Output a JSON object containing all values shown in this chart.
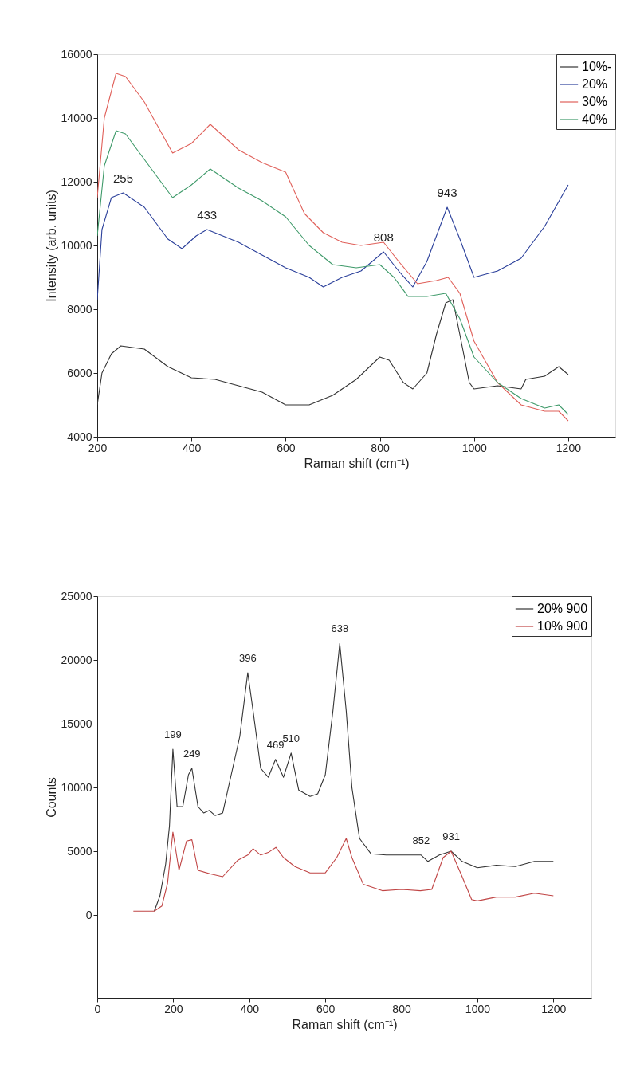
{
  "chart_data": [
    {
      "type": "line",
      "xlabel": "Raman shift (cm⁻¹)",
      "ylabel": "Intensity (arb. units)",
      "xlim": [
        200,
        1300
      ],
      "xticks": [
        200,
        400,
        600,
        800,
        1000,
        1200
      ],
      "ylim": [
        4000,
        16000
      ],
      "yticks": [
        4000,
        6000,
        8000,
        10000,
        12000,
        14000,
        16000
      ],
      "grid": false,
      "legend": "top right",
      "series": [
        {
          "name": "10%-",
          "color": "#333333",
          "x": [
            200,
            210,
            230,
            250,
            300,
            350,
            400,
            450,
            500,
            550,
            600,
            650,
            700,
            750,
            800,
            820,
            850,
            870,
            900,
            920,
            940,
            955,
            970,
            990,
            1000,
            1050,
            1100,
            1110,
            1150,
            1180,
            1200
          ],
          "values": [
            5000,
            6000,
            6600,
            6850,
            6750,
            6200,
            5850,
            5800,
            5600,
            5400,
            5000,
            5000,
            5300,
            5800,
            6500,
            6400,
            5700,
            5500,
            6000,
            7200,
            8200,
            8300,
            7200,
            5700,
            5500,
            5600,
            5500,
            5800,
            5900,
            6200,
            5950
          ]
        },
        {
          "name": "20%",
          "color": "#2a3f9a",
          "x": [
            200,
            210,
            230,
            255,
            300,
            350,
            380,
            410,
            433,
            500,
            550,
            600,
            650,
            680,
            720,
            760,
            808,
            840,
            870,
            900,
            943,
            970,
            1000,
            1050,
            1100,
            1150,
            1200
          ],
          "values": [
            8300,
            10500,
            11500,
            11650,
            11200,
            10200,
            9900,
            10300,
            10500,
            10100,
            9700,
            9300,
            9000,
            8700,
            9000,
            9200,
            9800,
            9200,
            8700,
            9500,
            11200,
            10200,
            9000,
            9200,
            9600,
            10600,
            11900
          ]
        },
        {
          "name": "30%",
          "color": "#e0605a",
          "x": [
            200,
            215,
            240,
            260,
            300,
            360,
            400,
            440,
            500,
            550,
            600,
            640,
            680,
            720,
            760,
            808,
            840,
            880,
            920,
            945,
            970,
            1000,
            1050,
            1100,
            1150,
            1180,
            1200
          ],
          "values": [
            11500,
            14000,
            15400,
            15300,
            14500,
            12900,
            13200,
            13800,
            13000,
            12600,
            12300,
            11000,
            10400,
            10100,
            10000,
            10100,
            9500,
            8800,
            8900,
            9000,
            8500,
            7000,
            5700,
            5000,
            4800,
            4800,
            4500
          ]
        },
        {
          "name": "40%",
          "color": "#3f9a6a",
          "x": [
            200,
            215,
            240,
            260,
            300,
            360,
            400,
            440,
            500,
            550,
            600,
            650,
            700,
            750,
            800,
            830,
            860,
            900,
            940,
            970,
            1000,
            1050,
            1100,
            1150,
            1180,
            1200
          ],
          "values": [
            10300,
            12500,
            13600,
            13500,
            12700,
            11500,
            11900,
            12400,
            11800,
            11400,
            10900,
            10000,
            9400,
            9300,
            9400,
            9000,
            8400,
            8400,
            8500,
            7700,
            6500,
            5700,
            5200,
            4900,
            5000,
            4700
          ]
        }
      ],
      "annotations": [
        {
          "text": "255",
          "x": 255,
          "y": 11650
        },
        {
          "text": "433",
          "x": 433,
          "y": 10500
        },
        {
          "text": "808",
          "x": 808,
          "y": 9800
        },
        {
          "text": "943",
          "x": 943,
          "y": 11200
        }
      ]
    },
    {
      "type": "line",
      "xlabel": "Raman shift (cm⁻¹)",
      "ylabel": "Counts",
      "xlim": [
        0,
        1300
      ],
      "xticks": [
        0,
        200,
        400,
        600,
        800,
        1000,
        1200
      ],
      "ylim": [
        -6500,
        25000
      ],
      "yticks": [
        0,
        5000,
        10000,
        15000,
        20000,
        25000
      ],
      "grid": false,
      "legend": "top right",
      "series": [
        {
          "name": "20% 900",
          "color": "#333333",
          "x": [
            150,
            165,
            180,
            190,
            199,
            210,
            225,
            240,
            249,
            265,
            280,
            295,
            310,
            330,
            360,
            375,
            396,
            410,
            430,
            450,
            469,
            490,
            510,
            530,
            560,
            580,
            600,
            620,
            638,
            655,
            670,
            690,
            720,
            760,
            800,
            852,
            870,
            900,
            931,
            960,
            1000,
            1050,
            1100,
            1150,
            1200
          ],
          "values": [
            300,
            1500,
            4000,
            7000,
            13000,
            8500,
            8500,
            11000,
            11500,
            8500,
            8000,
            8200,
            7800,
            8000,
            12000,
            14000,
            19000,
            16000,
            11500,
            10800,
            12200,
            10800,
            12700,
            9800,
            9300,
            9500,
            11000,
            16000,
            21300,
            16000,
            10000,
            6000,
            4800,
            4700,
            4700,
            4700,
            4200,
            4700,
            5000,
            4200,
            3700,
            3900,
            3800,
            4200,
            4200
          ]
        },
        {
          "name": "10% 900",
          "color": "#c04545",
          "x": [
            95,
            150,
            170,
            185,
            199,
            215,
            235,
            249,
            265,
            300,
            330,
            370,
            396,
            410,
            430,
            450,
            470,
            490,
            520,
            560,
            600,
            630,
            655,
            670,
            700,
            750,
            800,
            850,
            880,
            910,
            931,
            960,
            985,
            1000,
            1050,
            1100,
            1150,
            1200
          ],
          "values": [
            300,
            300,
            700,
            2500,
            6500,
            3500,
            5800,
            5900,
            3500,
            3200,
            3000,
            4300,
            4700,
            5200,
            4700,
            4900,
            5300,
            4500,
            3800,
            3300,
            3300,
            4500,
            6000,
            4500,
            2400,
            1900,
            2000,
            1900,
            2000,
            4500,
            5000,
            3000,
            1200,
            1100,
            1400,
            1400,
            1700,
            1500
          ]
        }
      ],
      "annotations": [
        {
          "text": "199",
          "x": 199,
          "y": 13000
        },
        {
          "text": "249",
          "x": 249,
          "y": 11500
        },
        {
          "text": "396",
          "x": 396,
          "y": 19000
        },
        {
          "text": "469",
          "x": 469,
          "y": 12200
        },
        {
          "text": "510",
          "x": 510,
          "y": 12700
        },
        {
          "text": "638",
          "x": 638,
          "y": 21300
        },
        {
          "text": "852",
          "x": 852,
          "y": 4700
        },
        {
          "text": "931",
          "x": 931,
          "y": 5000
        }
      ]
    }
  ]
}
